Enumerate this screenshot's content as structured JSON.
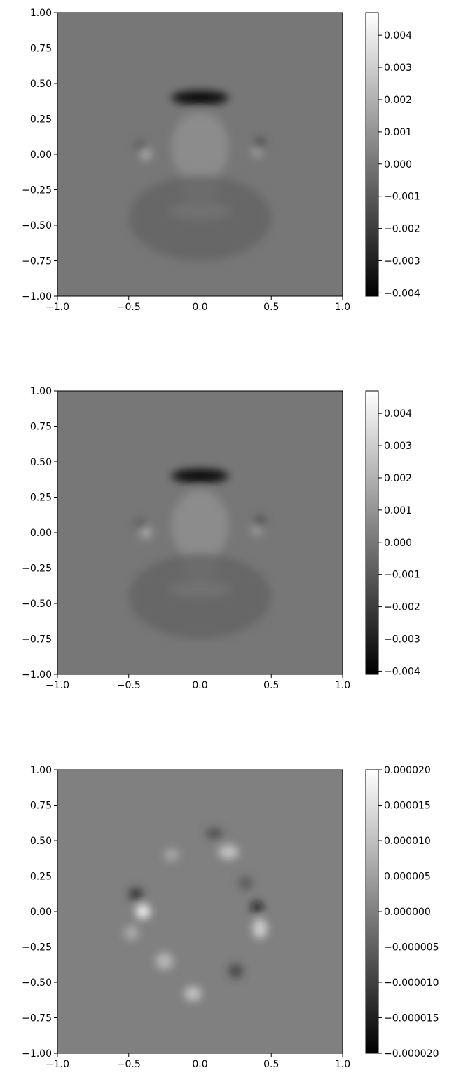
{
  "chart_data": [
    {
      "type": "heatmap",
      "xlim": [
        -1.0,
        1.0
      ],
      "ylim": [
        -1.0,
        1.0
      ],
      "x_ticks": [
        "−1.0",
        "−0.5",
        "0.0",
        "0.5",
        "1.0"
      ],
      "x_tick_values": [
        -1.0,
        -0.5,
        0.0,
        0.5,
        1.0
      ],
      "y_ticks": [
        "1.00",
        "0.75",
        "0.50",
        "0.25",
        "0.00",
        "−0.25",
        "−0.50",
        "−0.75",
        "−1.00"
      ],
      "y_tick_values": [
        1.0,
        0.75,
        0.5,
        0.25,
        0.0,
        -0.25,
        -0.5,
        -0.75,
        -1.0
      ],
      "colormap": "gray",
      "colorbar": {
        "range": [
          -0.0041,
          0.0047
        ],
        "ticks": [
          "0.004",
          "0.003",
          "0.002",
          "0.001",
          "0.000",
          "−0.001",
          "−0.002",
          "−0.003",
          "−0.004"
        ],
        "tick_values": [
          0.004,
          0.003,
          0.002,
          0.001,
          0.0,
          -0.001,
          -0.002,
          -0.003,
          -0.004
        ]
      },
      "features": [
        {
          "x": 0.0,
          "y": 0.4,
          "sx": 0.2,
          "sy": 0.05,
          "value": -0.004
        },
        {
          "x": 0.0,
          "y": -0.4,
          "sx": 0.22,
          "sy": 0.06,
          "value": 0.0045
        },
        {
          "x": 0.0,
          "y": -0.25,
          "sx": 0.14,
          "sy": 0.08,
          "value": 0.002
        },
        {
          "x": 0.0,
          "y": 0.05,
          "sx": 0.2,
          "sy": 0.25,
          "value": 0.0008
        },
        {
          "x": -0.38,
          "y": 0.0,
          "sx": 0.04,
          "sy": 0.04,
          "value": 0.002
        },
        {
          "x": -0.42,
          "y": 0.06,
          "sx": 0.04,
          "sy": 0.04,
          "value": -0.001
        },
        {
          "x": 0.4,
          "y": 0.02,
          "sx": 0.04,
          "sy": 0.04,
          "value": 0.0015
        },
        {
          "x": 0.42,
          "y": 0.08,
          "sx": 0.04,
          "sy": 0.04,
          "value": -0.0015
        },
        {
          "x": 0.0,
          "y": -0.45,
          "sx": 0.5,
          "sy": 0.3,
          "value": -0.0006
        }
      ]
    },
    {
      "type": "heatmap",
      "xlim": [
        -1.0,
        1.0
      ],
      "ylim": [
        -1.0,
        1.0
      ],
      "x_ticks": [
        "−1.0",
        "−0.5",
        "0.0",
        "0.5",
        "1.0"
      ],
      "x_tick_values": [
        -1.0,
        -0.5,
        0.0,
        0.5,
        1.0
      ],
      "y_ticks": [
        "1.00",
        "0.75",
        "0.50",
        "0.25",
        "0.00",
        "−0.25",
        "−0.50",
        "−0.75",
        "−1.00"
      ],
      "y_tick_values": [
        1.0,
        0.75,
        0.5,
        0.25,
        0.0,
        -0.25,
        -0.5,
        -0.75,
        -1.0
      ],
      "colormap": "gray",
      "colorbar": {
        "range": [
          -0.0041,
          0.0047
        ],
        "ticks": [
          "0.004",
          "0.003",
          "0.002",
          "0.001",
          "0.000",
          "−0.001",
          "−0.002",
          "−0.003",
          "−0.004"
        ],
        "tick_values": [
          0.004,
          0.003,
          0.002,
          0.001,
          0.0,
          -0.001,
          -0.002,
          -0.003,
          -0.004
        ]
      },
      "features": [
        {
          "x": 0.0,
          "y": 0.4,
          "sx": 0.2,
          "sy": 0.05,
          "value": -0.004
        },
        {
          "x": 0.0,
          "y": -0.4,
          "sx": 0.22,
          "sy": 0.06,
          "value": 0.0045
        },
        {
          "x": 0.0,
          "y": -0.25,
          "sx": 0.14,
          "sy": 0.08,
          "value": 0.002
        },
        {
          "x": 0.0,
          "y": 0.05,
          "sx": 0.2,
          "sy": 0.25,
          "value": 0.0008
        },
        {
          "x": -0.38,
          "y": 0.0,
          "sx": 0.04,
          "sy": 0.04,
          "value": 0.002
        },
        {
          "x": -0.42,
          "y": 0.06,
          "sx": 0.04,
          "sy": 0.04,
          "value": -0.001
        },
        {
          "x": 0.4,
          "y": 0.02,
          "sx": 0.04,
          "sy": 0.04,
          "value": 0.0015
        },
        {
          "x": 0.42,
          "y": 0.08,
          "sx": 0.04,
          "sy": 0.04,
          "value": -0.0015
        },
        {
          "x": 0.0,
          "y": -0.45,
          "sx": 0.5,
          "sy": 0.3,
          "value": -0.0006
        }
      ]
    },
    {
      "type": "heatmap",
      "xlim": [
        -1.0,
        1.0
      ],
      "ylim": [
        -1.0,
        1.0
      ],
      "x_ticks": [
        "−1.0",
        "−0.5",
        "0.0",
        "0.5",
        "1.0"
      ],
      "x_tick_values": [
        -1.0,
        -0.5,
        0.0,
        0.5,
        1.0
      ],
      "y_ticks": [
        "1.00",
        "0.75",
        "0.50",
        "0.25",
        "0.00",
        "−0.25",
        "−0.50",
        "−0.75",
        "−1.00"
      ],
      "y_tick_values": [
        1.0,
        0.75,
        0.5,
        0.25,
        0.0,
        -0.25,
        -0.5,
        -0.75,
        -1.0
      ],
      "colormap": "gray",
      "colorbar": {
        "range": [
          -2e-05,
          2e-05
        ],
        "ticks": [
          "0.000020",
          "0.000015",
          "0.000010",
          "0.000005",
          "0.000000",
          "−0.000005",
          "−0.000010",
          "−0.000015",
          "−0.000020"
        ],
        "tick_values": [
          2e-05,
          1.5e-05,
          1e-05,
          5e-06,
          0.0,
          -5e-06,
          -1e-05,
          -1.5e-05,
          -2e-05
        ]
      },
      "features": [
        {
          "x": -0.4,
          "y": 0.0,
          "sx": 0.05,
          "sy": 0.05,
          "value": 2e-05
        },
        {
          "x": -0.45,
          "y": 0.12,
          "sx": 0.05,
          "sy": 0.05,
          "value": -1.2e-05
        },
        {
          "x": 0.4,
          "y": 0.03,
          "sx": 0.04,
          "sy": 0.04,
          "value": -1.8e-05
        },
        {
          "x": 0.42,
          "y": -0.12,
          "sx": 0.05,
          "sy": 0.07,
          "value": 1.4e-05
        },
        {
          "x": 0.2,
          "y": 0.42,
          "sx": 0.07,
          "sy": 0.05,
          "value": 1.2e-05
        },
        {
          "x": -0.2,
          "y": 0.4,
          "sx": 0.05,
          "sy": 0.04,
          "value": 8e-06
        },
        {
          "x": 0.1,
          "y": 0.55,
          "sx": 0.06,
          "sy": 0.04,
          "value": -8e-06
        },
        {
          "x": -0.25,
          "y": -0.35,
          "sx": 0.06,
          "sy": 0.06,
          "value": 1e-05
        },
        {
          "x": -0.05,
          "y": -0.58,
          "sx": 0.06,
          "sy": 0.05,
          "value": 1.2e-05
        },
        {
          "x": 0.25,
          "y": -0.42,
          "sx": 0.05,
          "sy": 0.05,
          "value": -1e-05
        },
        {
          "x": -0.48,
          "y": -0.15,
          "sx": 0.05,
          "sy": 0.05,
          "value": 8e-06
        },
        {
          "x": 0.32,
          "y": 0.2,
          "sx": 0.05,
          "sy": 0.05,
          "value": -6e-06
        }
      ]
    }
  ]
}
